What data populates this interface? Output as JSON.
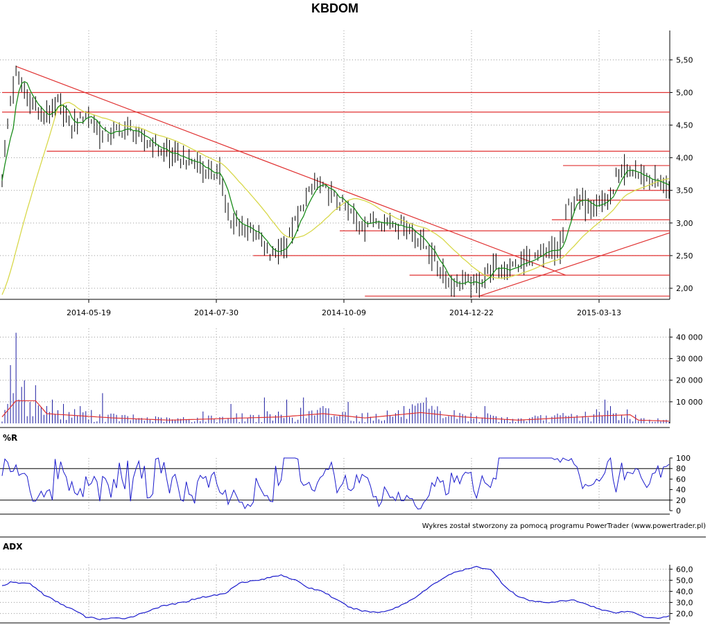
{
  "title": "KBDOM",
  "credit": "Wykres został stworzony za pomocą programu PowerTrader (www.powertrader.pl)",
  "colors": {
    "price_bar": "#000000",
    "ma_fast": "#1a8c1a",
    "ma_slow": "#d8d84a",
    "level_line": "#e03030",
    "volume_bar": "#1a1aa0",
    "volume_avg": "#e03030",
    "indicator_line": "#1a1acc",
    "grid": "#9a9a9a"
  },
  "chart_data": [
    {
      "type": "line",
      "panel": "price",
      "series_kind": "ohlc bars with moving averages",
      "x_ticks": [
        "2014-05-19",
        "2014-07-30",
        "2014-10-09",
        "2014-12-22",
        "2015-03-13"
      ],
      "y_ticks": [
        "2,00",
        "2,50",
        "3,00",
        "3,50",
        "4,00",
        "4,50",
        "5,00",
        "5,50"
      ],
      "ylim": [
        1.83,
        5.95
      ],
      "n_bars": 240,
      "close_anchors": [
        [
          0,
          3.7
        ],
        [
          3,
          4.9
        ],
        [
          5,
          5.3
        ],
        [
          9,
          4.95
        ],
        [
          15,
          4.6
        ],
        [
          20,
          4.85
        ],
        [
          25,
          4.45
        ],
        [
          30,
          4.7
        ],
        [
          36,
          4.35
        ],
        [
          45,
          4.45
        ],
        [
          50,
          4.3
        ],
        [
          60,
          4.05
        ],
        [
          70,
          3.9
        ],
        [
          78,
          3.7
        ],
        [
          82,
          3.0
        ],
        [
          90,
          2.9
        ],
        [
          96,
          2.5
        ],
        [
          102,
          2.7
        ],
        [
          108,
          3.3
        ],
        [
          112,
          3.6
        ],
        [
          116,
          3.5
        ],
        [
          122,
          3.3
        ],
        [
          128,
          3.0
        ],
        [
          135,
          3.05
        ],
        [
          145,
          2.95
        ],
        [
          150,
          2.75
        ],
        [
          155,
          2.45
        ],
        [
          160,
          2.1
        ],
        [
          170,
          2.05
        ],
        [
          175,
          2.3
        ],
        [
          180,
          2.3
        ],
        [
          185,
          2.35
        ],
        [
          190,
          2.45
        ],
        [
          200,
          2.6
        ],
        [
          203,
          3.3
        ],
        [
          207,
          3.35
        ],
        [
          214,
          3.3
        ],
        [
          218,
          3.4
        ],
        [
          220,
          3.7
        ],
        [
          225,
          3.8
        ],
        [
          230,
          3.7
        ],
        [
          236,
          3.6
        ],
        [
          239,
          3.55
        ]
      ],
      "level_lines": [
        {
          "y": 5.0,
          "x_from": 0,
          "x_to": 240
        },
        {
          "y": 4.7,
          "x_from": 0,
          "x_to": 240
        },
        {
          "y": 4.1,
          "x_from": 16,
          "x_to": 240
        },
        {
          "y": 3.88,
          "x_from": 201,
          "x_to": 240
        },
        {
          "y": 3.5,
          "x_from": 217,
          "x_to": 240
        },
        {
          "y": 3.35,
          "x_from": 206,
          "x_to": 240
        },
        {
          "y": 3.05,
          "x_from": 197,
          "x_to": 240
        },
        {
          "y": 2.88,
          "x_from": 121,
          "x_to": 240
        },
        {
          "y": 2.5,
          "x_from": 90,
          "x_to": 240
        },
        {
          "y": 2.2,
          "x_from": 146,
          "x_to": 240
        },
        {
          "y": 1.88,
          "x_from": 130,
          "x_to": 240
        }
      ],
      "trend_lines": [
        {
          "x1": 5,
          "y1": 5.4,
          "x2": 202,
          "y2": 2.2
        },
        {
          "x1": 171,
          "y1": 1.88,
          "x2": 240,
          "y2": 2.85
        }
      ]
    },
    {
      "type": "bar",
      "panel": "volume",
      "y_ticks": [
        "10 000",
        "20 000",
        "30 000",
        "40 000"
      ],
      "ylim": [
        0,
        44000
      ],
      "spikes": [
        [
          2,
          9000
        ],
        [
          3,
          27000
        ],
        [
          4,
          14000
        ],
        [
          5,
          42000
        ],
        [
          6,
          11000
        ],
        [
          18,
          11000
        ],
        [
          22,
          9000
        ],
        [
          28,
          8000
        ],
        [
          36,
          14000
        ],
        [
          72,
          5500
        ],
        [
          82,
          9000
        ],
        [
          94,
          12000
        ],
        [
          102,
          11000
        ],
        [
          108,
          12000
        ],
        [
          124,
          10000
        ],
        [
          152,
          12000
        ],
        [
          173,
          8000
        ],
        [
          216,
          11000
        ],
        [
          218,
          8000
        ]
      ],
      "avg_level": [
        [
          0,
          3000
        ],
        [
          5,
          10500
        ],
        [
          12,
          10500
        ],
        [
          16,
          4500
        ],
        [
          40,
          2500
        ],
        [
          60,
          1500
        ],
        [
          100,
          3000
        ],
        [
          115,
          4500
        ],
        [
          130,
          2500
        ],
        [
          150,
          5000
        ],
        [
          165,
          3000
        ],
        [
          185,
          1500
        ],
        [
          200,
          2500
        ],
        [
          215,
          3500
        ],
        [
          225,
          4000
        ],
        [
          228,
          1500
        ],
        [
          240,
          1000
        ]
      ]
    },
    {
      "type": "line",
      "panel": "williams",
      "label": "%R",
      "y_ticks": [
        "0",
        "20",
        "40",
        "60",
        "80",
        "100"
      ],
      "ylim": [
        0,
        100
      ],
      "reference_levels": [
        20,
        80
      ],
      "values": [
        66,
        98,
        92,
        74,
        75,
        87,
        67,
        70,
        71,
        65,
        37,
        18,
        18,
        27,
        37,
        26,
        37,
        40,
        20,
        98,
        60,
        93,
        74,
        64,
        38,
        55,
        34,
        30,
        42,
        26,
        65,
        48,
        52,
        65,
        55,
        18,
        65,
        61,
        49,
        25,
        60,
        43,
        91,
        59,
        41,
        95,
        18,
        62,
        80,
        94,
        61,
        85,
        24,
        25,
        32,
        98,
        100,
        71,
        92,
        60,
        33,
        63,
        69,
        47,
        21,
        18,
        55,
        31,
        29,
        14,
        55,
        67,
        61,
        65,
        44,
        67,
        73,
        50,
        35,
        31,
        39,
        12,
        25,
        39,
        28,
        16,
        16,
        4,
        12,
        8,
        16,
        62,
        48,
        38,
        28,
        29,
        18,
        17,
        85,
        48,
        58,
        100,
        100,
        100,
        100,
        100,
        98,
        56,
        48,
        50,
        54,
        40,
        37,
        53,
        63,
        67,
        79,
        78,
        92,
        68,
        34,
        44,
        51,
        67,
        41,
        38,
        43,
        68,
        53,
        69,
        65,
        62,
        47,
        26,
        27,
        8,
        17,
        45,
        36,
        25,
        26,
        19,
        35,
        19,
        19,
        29,
        23,
        23,
        10,
        3,
        4,
        15,
        21,
        29,
        53,
        46,
        64,
        54,
        57,
        30,
        33,
        72,
        54,
        66,
        51,
        66,
        73,
        71,
        73,
        38,
        24,
        45,
        66,
        53,
        49,
        44,
        62,
        60,
        100,
        100,
        100,
        100,
        100,
        100,
        100,
        100,
        100,
        100,
        100,
        100,
        100,
        100,
        100,
        100,
        100,
        100,
        100,
        100,
        97,
        99,
        92,
        100,
        97,
        95,
        99,
        88,
        83,
        64,
        42,
        50,
        47,
        48,
        51,
        60,
        56,
        63,
        72,
        93,
        100,
        58,
        35,
        63,
        91,
        59,
        73,
        72,
        70,
        80,
        78,
        63,
        53,
        44,
        51,
        70,
        72,
        85,
        63,
        83,
        84,
        88
      ]
    },
    {
      "type": "line",
      "panel": "adx",
      "label": "ADX",
      "y_ticks": [
        "20,0",
        "30,0",
        "40,0",
        "50,0",
        "60,0"
      ],
      "ylim": [
        14,
        64
      ],
      "anchors": [
        [
          0,
          45
        ],
        [
          3,
          48
        ],
        [
          10,
          47
        ],
        [
          15,
          37
        ],
        [
          20,
          30
        ],
        [
          25,
          24
        ],
        [
          30,
          17
        ],
        [
          35,
          15
        ],
        [
          45,
          16
        ],
        [
          50,
          20
        ],
        [
          55,
          25
        ],
        [
          60,
          28
        ],
        [
          65,
          30
        ],
        [
          70,
          34
        ],
        [
          75,
          36
        ],
        [
          80,
          38
        ],
        [
          85,
          48
        ],
        [
          92,
          50
        ],
        [
          100,
          55
        ],
        [
          105,
          50
        ],
        [
          110,
          43
        ],
        [
          115,
          40
        ],
        [
          120,
          32
        ],
        [
          125,
          25
        ],
        [
          130,
          22
        ],
        [
          135,
          21
        ],
        [
          140,
          24
        ],
        [
          145,
          30
        ],
        [
          150,
          38
        ],
        [
          155,
          47
        ],
        [
          160,
          55
        ],
        [
          165,
          59
        ],
        [
          170,
          62
        ],
        [
          175,
          60
        ],
        [
          180,
          45
        ],
        [
          185,
          35
        ],
        [
          190,
          31
        ],
        [
          195,
          30
        ],
        [
          200,
          31
        ],
        [
          205,
          32
        ],
        [
          210,
          28
        ],
        [
          215,
          23
        ],
        [
          220,
          21
        ],
        [
          225,
          22
        ],
        [
          230,
          17
        ],
        [
          235,
          16
        ],
        [
          240,
          18
        ]
      ]
    }
  ]
}
